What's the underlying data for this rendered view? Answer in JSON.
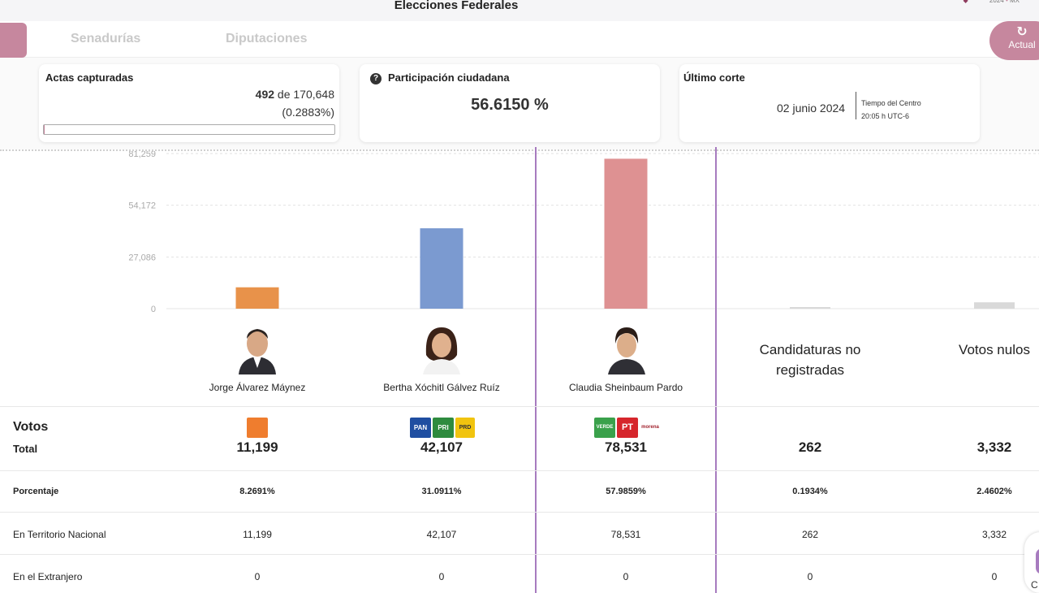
{
  "header": {
    "title": "Elecciones Federales",
    "brand_year": "2024",
    "brand_country": "MX"
  },
  "tabs": {
    "active": "",
    "senadurias": "Senadurías",
    "diputaciones": "Diputaciones"
  },
  "actas": {
    "title": "Actas capturadas",
    "count": "492",
    "de_text": "de",
    "total": "170,648",
    "percentage_text": "(0.2883%)",
    "progress_fraction": 0.002883
  },
  "participacion": {
    "title": "Participación ciudadana",
    "value": "56.6150 %"
  },
  "corte": {
    "title": "Último corte",
    "date": "02 junio 2024",
    "tz_label": "Tiempo del Centro",
    "tz_time": "20:05 h UTC-6"
  },
  "refresh": {
    "label": "Actual"
  },
  "colors": {
    "accent": "#c6879e",
    "divider": "#a77bbf",
    "jorge": "#e8924a",
    "xochitl": "#7b9ad0",
    "claudia": "#de9192",
    "other": "#d9d9d9"
  },
  "chart_data": {
    "type": "bar",
    "categories": [
      "Jorge Álvarez Máynez",
      "Bertha Xóchitl Gálvez Ruíz",
      "Claudia Sheinbaum Pardo",
      "Candidaturas no registradas",
      "Votos nulos"
    ],
    "values": [
      11199,
      42107,
      78531,
      262,
      3332
    ],
    "y_ticks": [
      "81,259",
      "54,172",
      "27,086",
      "0"
    ],
    "y_tick_values": [
      81259,
      54172,
      27086,
      0
    ],
    "ylim": [
      0,
      81259
    ],
    "grid": true
  },
  "candidates": [
    {
      "name": "Jorge Álvarez Máynez",
      "photo_icon": "candidate-photo-icon"
    },
    {
      "name": "Bertha Xóchitl Gálvez Ruíz",
      "photo_icon": "candidate-photo-icon"
    },
    {
      "name": "Claudia Sheinbaum Pardo",
      "photo_icon": "candidate-photo-icon"
    }
  ],
  "columns": {
    "no_registradas": [
      "Candidaturas no",
      "registradas"
    ],
    "nulos": "Votos nulos"
  },
  "party_logos": {
    "mc": "",
    "pan": "PAN",
    "pri": "PRI",
    "prd": "PRD",
    "verde": "VERDE",
    "pt": "PT",
    "morena": "morena"
  },
  "table": {
    "votos_label": "Votos",
    "total_label": "Total",
    "totals": [
      "11,199",
      "42,107",
      "78,531",
      "262",
      "3,332"
    ],
    "rows": [
      {
        "label": "Porcentaje",
        "values": [
          "8.2691%",
          "31.0911%",
          "57.9859%",
          "0.1934%",
          "2.4602%"
        ]
      },
      {
        "label": "En Territorio Nacional",
        "values": [
          "11,199",
          "42,107",
          "78,531",
          "262",
          "3,332"
        ]
      },
      {
        "label": "En el Extranjero",
        "values": [
          "0",
          "0",
          "0",
          "0",
          "0"
        ]
      }
    ]
  },
  "scroll_widget": {
    "label": "C"
  }
}
